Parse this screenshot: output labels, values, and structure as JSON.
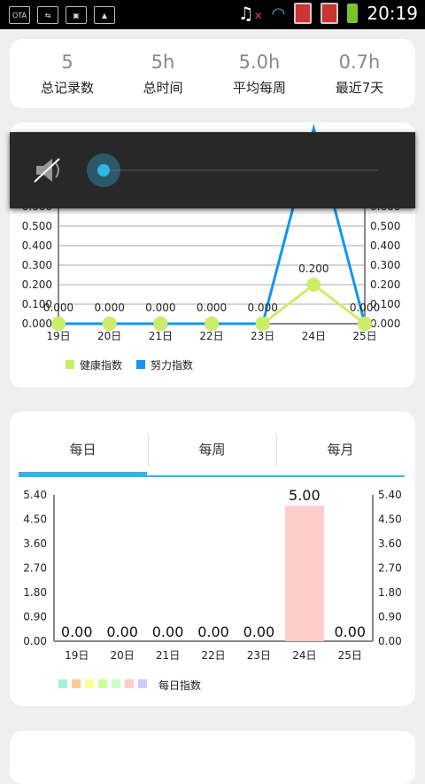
{
  "status_bar": {
    "left_icons": [
      "ota-icon",
      "usb-icon",
      "android-debug-icon",
      "image-icon"
    ],
    "right_icons": [
      "music-muted-icon",
      "wifi-icon",
      "sim1-icon",
      "sim2-icon",
      "battery-icon"
    ],
    "time": "20:19"
  },
  "summary": {
    "items": [
      {
        "value": "5",
        "label": "总记录数"
      },
      {
        "value": "5h",
        "label": "总时间"
      },
      {
        "value": "5.0h",
        "label": "平均每周"
      },
      {
        "value": "0.7h",
        "label": "最近7天"
      }
    ]
  },
  "volume_overlay": {
    "icon": "speaker-muted-icon",
    "level": 0.0
  },
  "line_chart_card": {
    "chart_data": {
      "type": "line",
      "categories": [
        "19日",
        "20日",
        "21日",
        "22日",
        "23日",
        "24日",
        "25日"
      ],
      "y_ticks": [
        "0.000",
        "0.100",
        "0.200",
        "0.300",
        "0.400",
        "0.500",
        "0.600"
      ],
      "ylim": [
        0,
        0.6
      ],
      "series": [
        {
          "name": "健康指数",
          "color": "#ccee66",
          "values": [
            0,
            0,
            0,
            0,
            0,
            0.2,
            0
          ],
          "labels": [
            "",
            "",
            "",
            "",
            "",
            "0.200",
            ""
          ]
        },
        {
          "name": "努力指数",
          "color": "#1196ee",
          "values": [
            0,
            0,
            0,
            0,
            0,
            1.0,
            0
          ],
          "labels": [
            "0.000",
            "0.000",
            "0.000",
            "0.000",
            "0.000",
            "",
            "0.000"
          ]
        }
      ]
    }
  },
  "bar_chart_card": {
    "tabs": [
      {
        "label": "每日",
        "selected": true
      },
      {
        "label": "每周",
        "selected": false
      },
      {
        "label": "每月",
        "selected": false
      }
    ],
    "chart_data": {
      "type": "bar",
      "categories": [
        "19日",
        "20日",
        "21日",
        "22日",
        "23日",
        "24日",
        "25日"
      ],
      "values": [
        0,
        0,
        0,
        0,
        0,
        5.0,
        0
      ],
      "value_labels": [
        "0.00",
        "0.00",
        "0.00",
        "0.00",
        "0.00",
        "5.00",
        "0.00"
      ],
      "y_ticks": [
        "0.00",
        "0.90",
        "1.80",
        "2.70",
        "3.60",
        "4.50",
        "5.40"
      ],
      "ylim": [
        0,
        5.4
      ],
      "bar_color": "#ffcccc",
      "legend": {
        "swatches": [
          "#aaeedd",
          "#ffcc99",
          "#ffff99",
          "#ccff99",
          "#ccffcc",
          "#ffcccc",
          "#ccccff"
        ],
        "label": "每日指数"
      }
    }
  }
}
